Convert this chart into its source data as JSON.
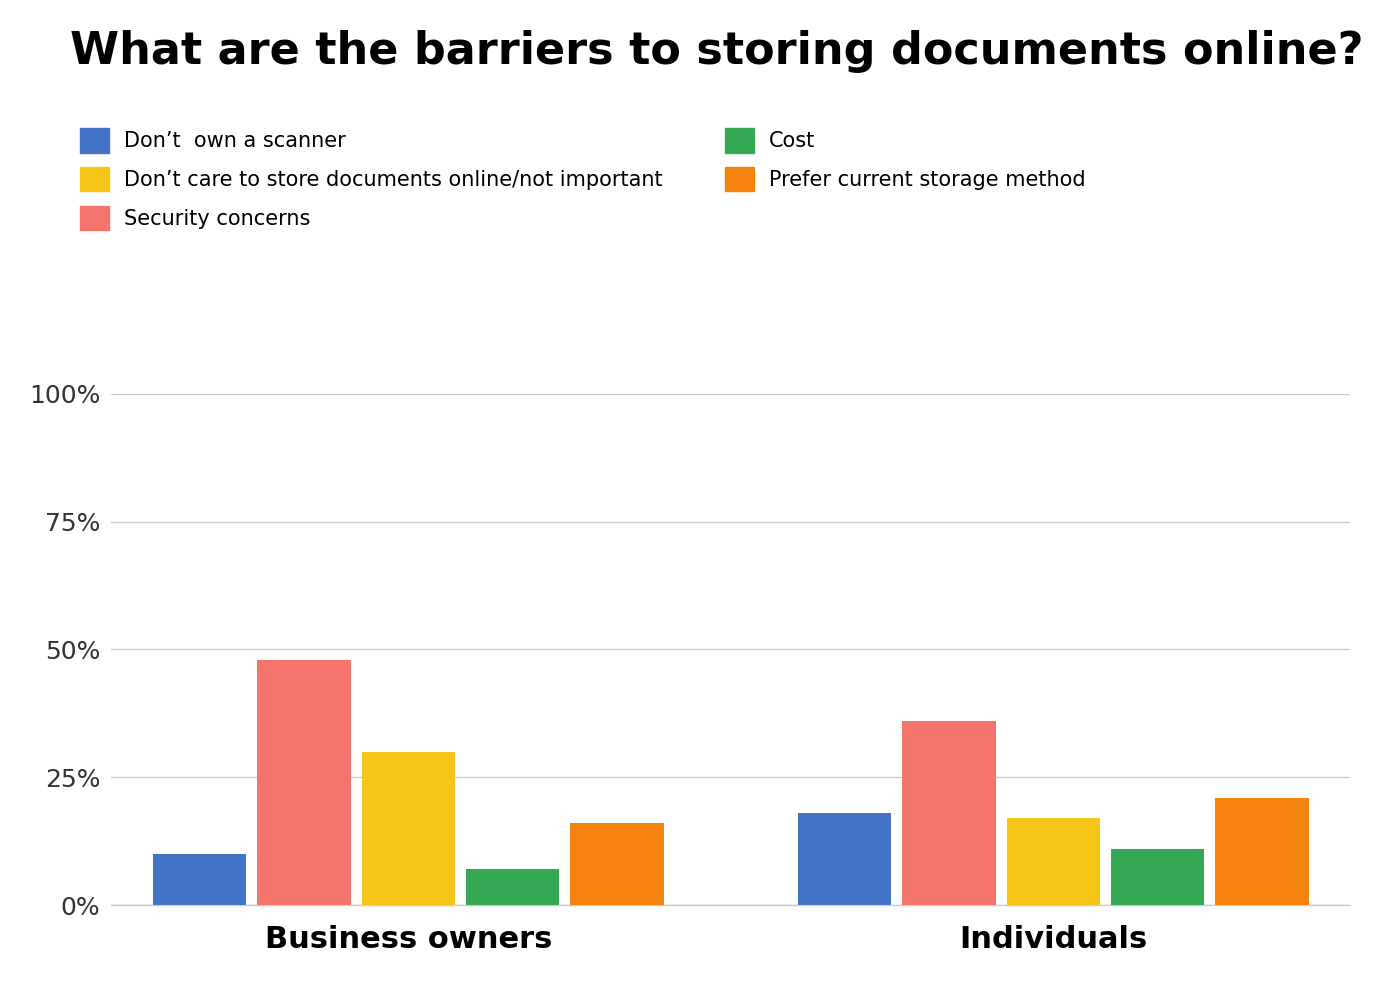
{
  "title": "What are the barriers to storing documents online?",
  "groups": [
    "Business owners",
    "Individuals"
  ],
  "legend_order": [
    0,
    2,
    1,
    3,
    4
  ],
  "legend_labels_ordered": [
    "Don’t  own a scanner",
    "Don’t care to store documents online/not important",
    "Security concerns",
    "Cost",
    "Prefer current storage method"
  ],
  "legend_colors_ordered": [
    "#4472C4",
    "#F5C518",
    "#F4736A",
    "#34A853",
    "#F5820D"
  ],
  "categories": [
    "Don’t  own a scanner",
    "Security concerns",
    "Don’t care to store documents online/not important",
    "Cost",
    "Prefer current storage method"
  ],
  "bar_colors": [
    "#4472C4",
    "#F4736A",
    "#F5C518",
    "#34A853",
    "#F5820D"
  ],
  "business_owners": [
    10,
    48,
    30,
    7,
    16
  ],
  "individuals": [
    18,
    36,
    17,
    11,
    21
  ],
  "ylim": [
    0,
    100
  ],
  "yticks": [
    0,
    25,
    50,
    75,
    100
  ],
  "ytick_labels": [
    "0%",
    "25%",
    "50%",
    "75%",
    "100%"
  ],
  "background_color": "#ffffff",
  "title_fontsize": 32,
  "legend_fontsize": 15,
  "tick_fontsize": 18,
  "xgroup_fontsize": 22
}
